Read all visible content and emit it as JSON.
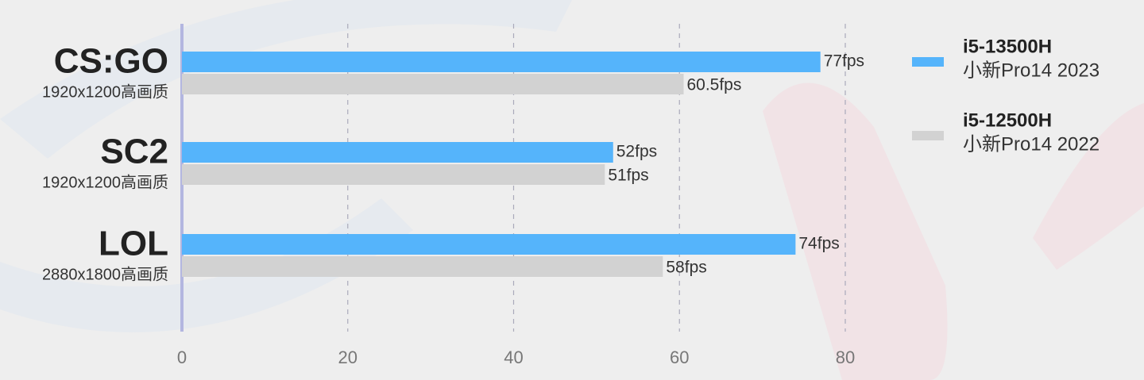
{
  "chart_data": {
    "type": "bar",
    "orientation": "horizontal",
    "categories": [
      "CS:GO",
      "SC2",
      "LOL"
    ],
    "category_notes": [
      "1920x1200高画质",
      "1920x1200高画质",
      "2880x1800高画质"
    ],
    "series": [
      {
        "name": "i5-13500H",
        "device": "小新Pro14 2023",
        "color": "#55b4fb",
        "values": [
          77,
          52,
          74
        ],
        "value_labels": [
          "77fps",
          "52fps",
          "74fps"
        ]
      },
      {
        "name": "i5-12500H",
        "device": "小新Pro14 2022",
        "color": "#d2d2d2",
        "values": [
          60.5,
          51,
          58
        ],
        "value_labels": [
          "60.5fps",
          "51fps",
          "58fps"
        ]
      }
    ],
    "xlim": [
      0,
      80
    ],
    "xticks": [
      0,
      20,
      40,
      60,
      80
    ],
    "grid": true,
    "legend": "right"
  }
}
